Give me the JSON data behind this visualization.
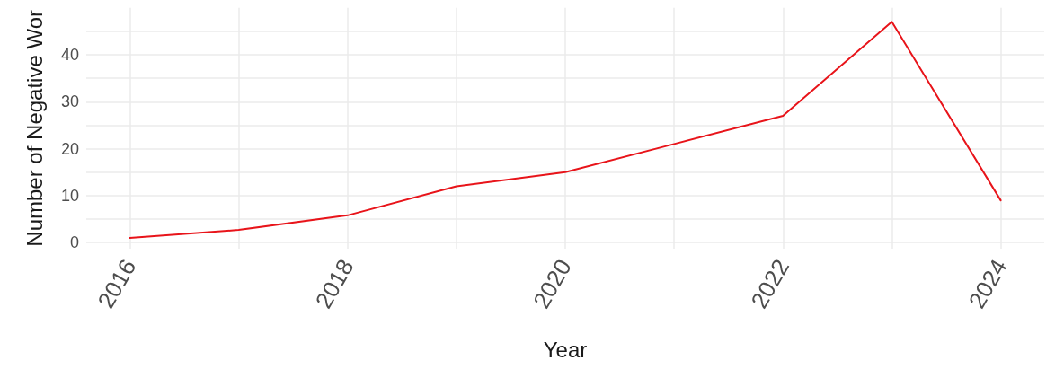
{
  "chart_data": {
    "type": "line",
    "xlabel": "Year",
    "ylabel": "Number of Negative Wor",
    "x": [
      2016,
      2017,
      2018,
      2019,
      2020,
      2021,
      2022,
      2023,
      2024
    ],
    "series": [
      {
        "color": "#e8141a",
        "values": [
          1,
          2.7,
          5.8,
          12,
          15,
          21,
          27,
          47,
          9
        ]
      }
    ],
    "xlim": [
      2015.6,
      2024.4
    ],
    "xticks": [
      2016,
      {
        "value": 2017,
        "label": null
      },
      2018,
      {
        "value": 2019,
        "label": null
      },
      2020,
      {
        "value": 2021,
        "label": null
      },
      2022,
      {
        "value": 2023,
        "label": null
      },
      2024
    ],
    "ylim": [
      -1.3,
      50
    ],
    "yticks": [
      0,
      {
        "value": 5,
        "label": null
      },
      10,
      {
        "value": 15,
        "label": null
      },
      20,
      {
        "value": 25,
        "label": null
      },
      30,
      {
        "value": 35,
        "label": null
      },
      40,
      {
        "value": 45,
        "label": null
      }
    ],
    "grid": true,
    "marker": "none",
    "line_style": "solid"
  }
}
